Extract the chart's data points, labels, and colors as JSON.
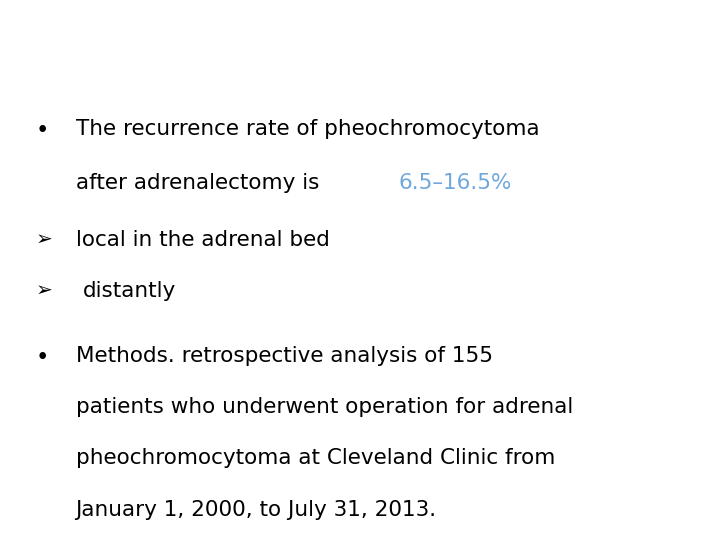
{
  "background_color": "#ffffff",
  "text_color": "#000000",
  "highlight_color": "#6fa8dc",
  "font_size": 15.5,
  "bullet1_line1": "The recurrence rate of pheochromocytoma",
  "bullet1_line2_black": "after adrenalectomy is ",
  "bullet1_line2_blue": "6.5–16.5%",
  "arrow1": "local in the adrenal bed",
  "arrow2": "distantly",
  "bullet2_line1": "Methods. retrospective analysis of 155",
  "bullet2_line2": "patients who underwent operation for adrenal",
  "bullet2_line3": "pheochromocytoma at Cleveland Clinic from",
  "bullet2_line4": "January 1, 2000, to July 31, 2013.",
  "arrow_symbol": "➢",
  "bullet_symbol": "•"
}
